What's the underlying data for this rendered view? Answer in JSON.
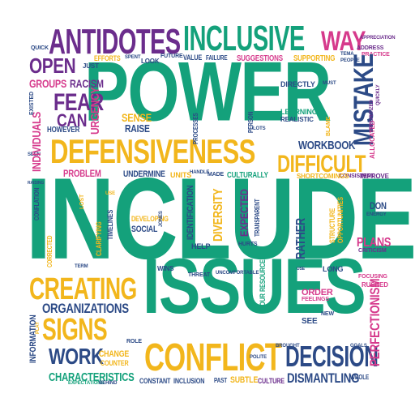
{
  "palette": {
    "green": "#14a17b",
    "purple": "#6b2d8c",
    "yellow": "#f2b61c",
    "pink": "#d63a8c",
    "blue": "#2c4a86"
  },
  "words": [
    {
      "text": "INCLUDE",
      "color": "green"
    },
    {
      "text": "POWER",
      "color": "green"
    },
    {
      "text": "ISSUES",
      "color": "green"
    },
    {
      "text": "DEFENSIVENESS",
      "color": "yellow"
    },
    {
      "text": "CONFLICT",
      "color": "yellow"
    },
    {
      "text": "ANTIDOTES",
      "color": "purple"
    },
    {
      "text": "INCLUSIVE",
      "color": "green"
    },
    {
      "text": "WAY",
      "color": "pink"
    },
    {
      "text": "CREATING",
      "color": "yellow"
    },
    {
      "text": "SIGNS",
      "color": "yellow"
    },
    {
      "text": "MISTAKE",
      "color": "blue"
    },
    {
      "text": "DECISION",
      "color": "blue"
    },
    {
      "text": "DIFFICULT",
      "color": "yellow"
    },
    {
      "text": "WORK",
      "color": "blue"
    },
    {
      "text": "FEAR",
      "color": "purple"
    },
    {
      "text": "OPEN",
      "color": "purple"
    },
    {
      "text": "CAN",
      "color": "purple"
    },
    {
      "text": "ORGANIZATIONS",
      "color": "blue"
    },
    {
      "text": "DISMANTLING",
      "color": "blue"
    },
    {
      "text": "CHARACTERISTICS",
      "color": "green"
    },
    {
      "text": "WORKBOOK",
      "color": "blue"
    },
    {
      "text": "GROUPS",
      "color": "pink"
    },
    {
      "text": "RACISM",
      "color": "purple"
    },
    {
      "text": "INDIVIDUALS",
      "color": "pink"
    },
    {
      "text": "URGENCY",
      "color": "pink"
    },
    {
      "text": "SENSE",
      "color": "yellow"
    },
    {
      "text": "RAISE",
      "color": "blue"
    },
    {
      "text": "HOWEVER",
      "color": "blue"
    },
    {
      "text": "PROBLEM",
      "color": "pink"
    },
    {
      "text": "UNDERMINE",
      "color": "blue"
    },
    {
      "text": "CULTURALLY",
      "color": "green"
    },
    {
      "text": "PERFECTIONISM",
      "color": "pink"
    },
    {
      "text": "DON",
      "color": "blue"
    },
    {
      "text": "PLANS",
      "color": "pink"
    },
    {
      "text": "RATHER",
      "color": "blue"
    },
    {
      "text": "EXPECTED",
      "color": "purple"
    },
    {
      "text": "DIVERSITY",
      "color": "yellow"
    },
    {
      "text": "SOCIAL",
      "color": "blue"
    },
    {
      "text": "DEVELOPING",
      "color": "yellow"
    },
    {
      "text": "CHANGE",
      "color": "yellow"
    },
    {
      "text": "COUNTER",
      "color": "yellow"
    },
    {
      "text": "INFORMATION",
      "color": "blue"
    },
    {
      "text": "CONSTANT",
      "color": "blue"
    },
    {
      "text": "INCLUSION",
      "color": "blue"
    },
    {
      "text": "SUBTLE",
      "color": "yellow"
    },
    {
      "text": "CULTURE",
      "color": "purple"
    },
    {
      "text": "POLITE",
      "color": "blue"
    },
    {
      "text": "SUGGESTIONS",
      "color": "pink"
    },
    {
      "text": "SUPPORTING",
      "color": "yellow"
    },
    {
      "text": "EFFORTS",
      "color": "yellow"
    },
    {
      "text": "VALUE",
      "color": "blue"
    },
    {
      "text": "FAILURE",
      "color": "blue"
    },
    {
      "text": "FUTURE",
      "color": "blue"
    },
    {
      "text": "LOOK",
      "color": "blue"
    },
    {
      "text": "JUST",
      "color": "blue"
    },
    {
      "text": "QUICK",
      "color": "blue"
    },
    {
      "text": "DIRECTLY",
      "color": "blue"
    },
    {
      "text": "LEARNING",
      "color": "green"
    },
    {
      "text": "REALISTIC",
      "color": "blue"
    },
    {
      "text": "LOTS",
      "color": "blue"
    },
    {
      "text": "FOUR",
      "color": "green"
    },
    {
      "text": "RESOURCES",
      "color": "green"
    },
    {
      "text": "THREAT",
      "color": "blue"
    },
    {
      "text": "HELP",
      "color": "blue"
    },
    {
      "text": "WINS",
      "color": "blue"
    },
    {
      "text": "HURTS",
      "color": "blue"
    },
    {
      "text": "ORDER",
      "color": "pink"
    },
    {
      "text": "FEELINGS",
      "color": "pink"
    },
    {
      "text": "SEE",
      "color": "blue"
    },
    {
      "text": "NEW",
      "color": "blue"
    },
    {
      "text": "WHOLE",
      "color": "blue"
    },
    {
      "text": "PAST",
      "color": "blue"
    },
    {
      "text": "LONG",
      "color": "blue"
    },
    {
      "text": "FOCUSING",
      "color": "pink"
    },
    {
      "text": "RUSHED",
      "color": "pink"
    },
    {
      "text": "ADDRESS",
      "color": "purple"
    },
    {
      "text": "PRACTICE",
      "color": "pink"
    },
    {
      "text": "ALLOCATED",
      "color": "pink"
    },
    {
      "text": "IMPROVE",
      "color": "purple"
    },
    {
      "text": "ENERGY",
      "color": "blue"
    },
    {
      "text": "CRITICISM",
      "color": "purple"
    },
    {
      "text": "MADE",
      "color": "blue"
    },
    {
      "text": "UNITS",
      "color": "yellow"
    },
    {
      "text": "IDENTIFICATION",
      "color": "blue"
    },
    {
      "text": "TIMELINES",
      "color": "blue"
    },
    {
      "text": "CLARIFYING",
      "color": "yellow"
    },
    {
      "text": "CONFLATION",
      "color": "blue"
    },
    {
      "text": "CORRECTED",
      "color": "yellow"
    },
    {
      "text": "SHORTCOMINGS",
      "color": "yellow"
    },
    {
      "text": "CONSISTENT",
      "color": "purple"
    },
    {
      "text": "STRUCTURE",
      "color": "yellow"
    },
    {
      "text": "OPPORTUNITIES",
      "color": "yellow"
    },
    {
      "text": "TRANSPARENT",
      "color": "blue"
    },
    {
      "text": "PROCESSES",
      "color": "blue"
    },
    {
      "text": "PERSON",
      "color": "blue"
    },
    {
      "text": "PROTECTING",
      "color": "green"
    },
    {
      "text": "EXPECTATIONS",
      "color": "blue"
    },
    {
      "text": "BEHIND",
      "color": "purple"
    },
    {
      "text": "APPRECIATION",
      "color": "purple"
    },
    {
      "text": "PRIORITIZED",
      "color": "purple"
    },
    {
      "text": "QUICKLY",
      "color": "yellow"
    },
    {
      "text": "LOST",
      "color": "blue"
    },
    {
      "text": "ROLE",
      "color": "blue"
    },
    {
      "text": "SEEN",
      "color": "blue"
    },
    {
      "text": "TERM",
      "color": "yellow"
    },
    {
      "text": "BLAME",
      "color": "blue"
    },
    {
      "text": "PEOPLE",
      "color": "blue"
    },
    {
      "text": "TEMA",
      "color": "blue"
    },
    {
      "text": "MUST",
      "color": "blue"
    },
    {
      "text": "SPENT",
      "color": "blue"
    },
    {
      "text": "HANDLE",
      "color": "blue"
    },
    {
      "text": "UNCOMFORTABLE",
      "color": "blue"
    },
    {
      "text": "BROUGHT",
      "color": "blue"
    },
    {
      "text": "GOALS",
      "color": "blue"
    },
    {
      "text": "EXISTED",
      "color": "blue"
    },
    {
      "text": "RAISING",
      "color": "blue"
    },
    {
      "text": "JONES",
      "color": "blue"
    },
    {
      "text": "USE",
      "color": "yellow"
    },
    {
      "text": "PLAY",
      "color": "yellow"
    }
  ]
}
